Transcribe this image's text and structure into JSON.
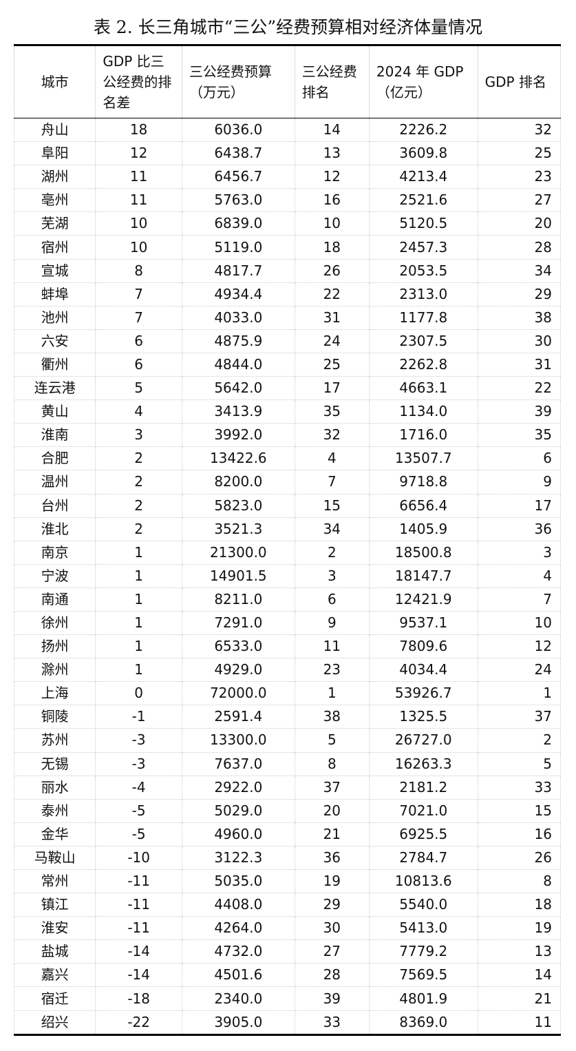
{
  "title": "表 2. 长三角城市“三公”经费预算相对经济体量情况",
  "headers": [
    "城市",
    "GDP 比三公经费的排名差",
    "三公经费预算（万元）",
    "三公经费排名",
    "2024 年 GDP（亿元）",
    "GDP 排名"
  ],
  "rows": [
    [
      "舟山",
      "18",
      "6036.0",
      "14",
      "2226.2",
      "32"
    ],
    [
      "阜阳",
      "12",
      "6438.7",
      "13",
      "3609.8",
      "25"
    ],
    [
      "湖州",
      "11",
      "6456.7",
      "12",
      "4213.4",
      "23"
    ],
    [
      "亳州",
      "11",
      "5763.0",
      "16",
      "2521.6",
      "27"
    ],
    [
      "芜湖",
      "10",
      "6839.0",
      "10",
      "5120.5",
      "20"
    ],
    [
      "宿州",
      "10",
      "5119.0",
      "18",
      "2457.3",
      "28"
    ],
    [
      "宣城",
      "8",
      "4817.7",
      "26",
      "2053.5",
      "34"
    ],
    [
      "蚌埠",
      "7",
      "4934.4",
      "22",
      "2313.0",
      "29"
    ],
    [
      "池州",
      "7",
      "4033.0",
      "31",
      "1177.8",
      "38"
    ],
    [
      "六安",
      "6",
      "4875.9",
      "24",
      "2307.5",
      "30"
    ],
    [
      "衢州",
      "6",
      "4844.0",
      "25",
      "2262.8",
      "31"
    ],
    [
      "连云港",
      "5",
      "5642.0",
      "17",
      "4663.1",
      "22"
    ],
    [
      "黄山",
      "4",
      "3413.9",
      "35",
      "1134.0",
      "39"
    ],
    [
      "淮南",
      "3",
      "3992.0",
      "32",
      "1716.0",
      "35"
    ],
    [
      "合肥",
      "2",
      "13422.6",
      "4",
      "13507.7",
      "6"
    ],
    [
      "温州",
      "2",
      "8200.0",
      "7",
      "9718.8",
      "9"
    ],
    [
      "台州",
      "2",
      "5823.0",
      "15",
      "6656.4",
      "17"
    ],
    [
      "淮北",
      "2",
      "3521.3",
      "34",
      "1405.9",
      "36"
    ],
    [
      "南京",
      "1",
      "21300.0",
      "2",
      "18500.8",
      "3"
    ],
    [
      "宁波",
      "1",
      "14901.5",
      "3",
      "18147.7",
      "4"
    ],
    [
      "南通",
      "1",
      "8211.0",
      "6",
      "12421.9",
      "7"
    ],
    [
      "徐州",
      "1",
      "7291.0",
      "9",
      "9537.1",
      "10"
    ],
    [
      "扬州",
      "1",
      "6533.0",
      "11",
      "7809.6",
      "12"
    ],
    [
      "滁州",
      "1",
      "4929.0",
      "23",
      "4034.4",
      "24"
    ],
    [
      "上海",
      "0",
      "72000.0",
      "1",
      "53926.7",
      "1"
    ],
    [
      "铜陵",
      "-1",
      "2591.4",
      "38",
      "1325.5",
      "37"
    ],
    [
      "苏州",
      "-3",
      "13300.0",
      "5",
      "26727.0",
      "2"
    ],
    [
      "无锡",
      "-3",
      "7637.0",
      "8",
      "16263.3",
      "5"
    ],
    [
      "丽水",
      "-4",
      "2922.0",
      "37",
      "2181.2",
      "33"
    ],
    [
      "泰州",
      "-5",
      "5029.0",
      "20",
      "7021.0",
      "15"
    ],
    [
      "金华",
      "-5",
      "4960.0",
      "21",
      "6925.5",
      "16"
    ],
    [
      "马鞍山",
      "-10",
      "3122.3",
      "36",
      "2784.7",
      "26"
    ],
    [
      "常州",
      "-11",
      "5035.0",
      "19",
      "10813.6",
      "8"
    ],
    [
      "镇江",
      "-11",
      "4408.0",
      "29",
      "5540.0",
      "18"
    ],
    [
      "淮安",
      "-11",
      "4264.0",
      "30",
      "5413.0",
      "19"
    ],
    [
      "盐城",
      "-14",
      "4732.0",
      "27",
      "7779.2",
      "13"
    ],
    [
      "嘉兴",
      "-14",
      "4501.6",
      "28",
      "7569.5",
      "14"
    ],
    [
      "宿迁",
      "-18",
      "2340.0",
      "39",
      "4801.9",
      "21"
    ],
    [
      "绍兴",
      "-22",
      "3905.0",
      "33",
      "8369.0",
      "11"
    ]
  ]
}
